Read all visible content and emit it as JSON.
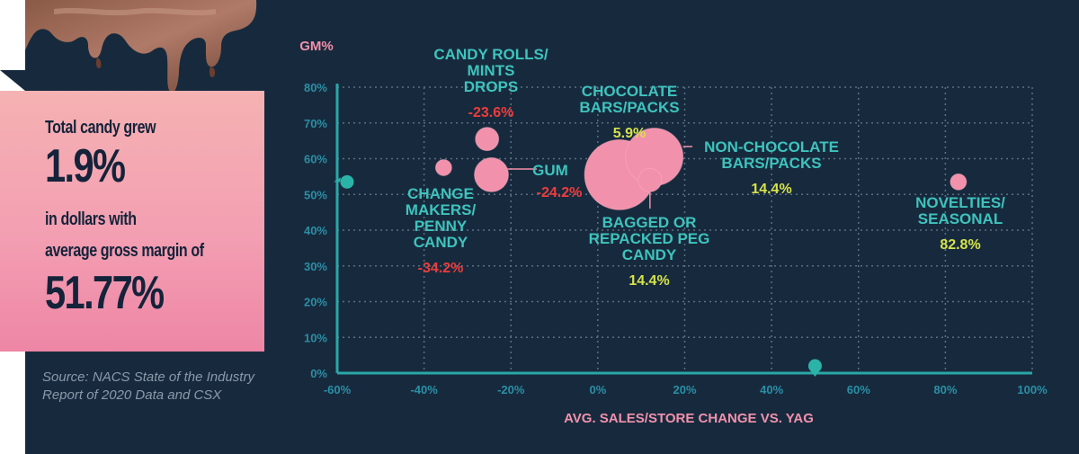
{
  "colors": {
    "background": "#172a3d",
    "axis": "#2aa7a6",
    "grid": "#5c6f82",
    "bubble": "#f291ac",
    "teal_label": "#3ec3bd",
    "green_value": "#d6e24a",
    "red_value": "#ef3b3b",
    "tick": "#2a8fa6",
    "marker": "#2bb3a8"
  },
  "info": {
    "line1": "Total candy grew",
    "line2": "1.9%",
    "line3": "in dollars with",
    "line4": "average gross margin of",
    "line5": "51.77%"
  },
  "source": {
    "line1": "Source: NACS State of the Industry",
    "line2": "Report of 2020 Data and CSX"
  },
  "chart_data": {
    "type": "scatter",
    "title": "",
    "ylabel": "GM%",
    "xlabel": "AVG. SALES/STORE CHANGE VS. YAG",
    "xlim": [
      -60,
      100
    ],
    "ylim": [
      0,
      80
    ],
    "x_ticks": [
      "-60%",
      "-40%",
      "-20%",
      "0%",
      "20%",
      "40%",
      "60%",
      "80%",
      "100%"
    ],
    "y_ticks": [
      "0%",
      "10%",
      "20%",
      "30%",
      "40%",
      "50%",
      "60%",
      "70%",
      "80%"
    ],
    "grid": true,
    "axis_markers": {
      "y": 53.5,
      "x": 50
    },
    "series": [
      {
        "label": [
          "CANDY ROLLS/",
          "MINTS",
          "DROPS"
        ],
        "value": "-23.6%",
        "value_color": "red",
        "x": -25.5,
        "y": 65.5,
        "size": "small"
      },
      {
        "label": [
          "GUM"
        ],
        "value": "-24.2%",
        "value_color": "red",
        "x": -24.5,
        "y": 55.5,
        "size": "medium"
      },
      {
        "label": [
          "CHANGE",
          "MAKERS/",
          "PENNY",
          "CANDY"
        ],
        "value": "-34.2%",
        "value_color": "red",
        "x": -35.5,
        "y": 57.5,
        "size": "tiny"
      },
      {
        "label": [
          "CHOCOLATE",
          "BARS/PACKS"
        ],
        "value": "5.9%",
        "value_color": "green",
        "x": 5,
        "y": 55.5,
        "size": "large"
      },
      {
        "label": [
          "NON-CHOCOLATE",
          "BARS/PACKS"
        ],
        "value": "14.4%",
        "value_color": "green",
        "x": 13,
        "y": 60.5,
        "size": "medium-large"
      },
      {
        "label": [
          "BAGGED OR",
          "REPACKED PEG",
          "CANDY"
        ],
        "value": "14.4%",
        "value_color": "green",
        "x": 12,
        "y": 54,
        "size": "small"
      },
      {
        "label": [
          "NOVELTIES/",
          "SEASONAL"
        ],
        "value": "82.8%",
        "value_color": "green",
        "x": 83,
        "y": 53.5,
        "size": "tiny"
      }
    ]
  }
}
